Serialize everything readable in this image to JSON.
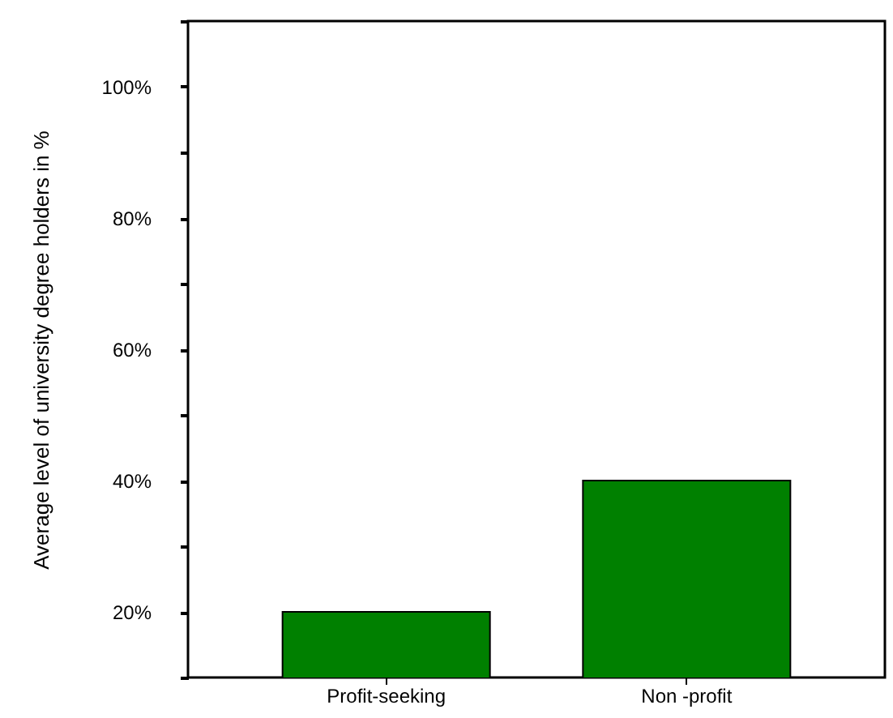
{
  "chart_data": {
    "type": "bar",
    "ylabel": "Average level of university degree holders in %",
    "categories": [
      "Profit-seeking",
      "Non -profit"
    ],
    "values": [
      20,
      40
    ],
    "color": "#008000",
    "ylim": [
      10,
      110
    ],
    "yticks": [
      {
        "value": 10,
        "label": null
      },
      {
        "value": 20,
        "label": "20%"
      },
      {
        "value": 30,
        "label": null
      },
      {
        "value": 40,
        "label": "40%"
      },
      {
        "value": 50,
        "label": null
      },
      {
        "value": 60,
        "label": "60%"
      },
      {
        "value": 70,
        "label": null
      },
      {
        "value": 80,
        "label": "80%"
      },
      {
        "value": 90,
        "label": null
      },
      {
        "value": 100,
        "label": "100%"
      },
      {
        "value": 110,
        "label": null
      }
    ],
    "grid": false
  }
}
